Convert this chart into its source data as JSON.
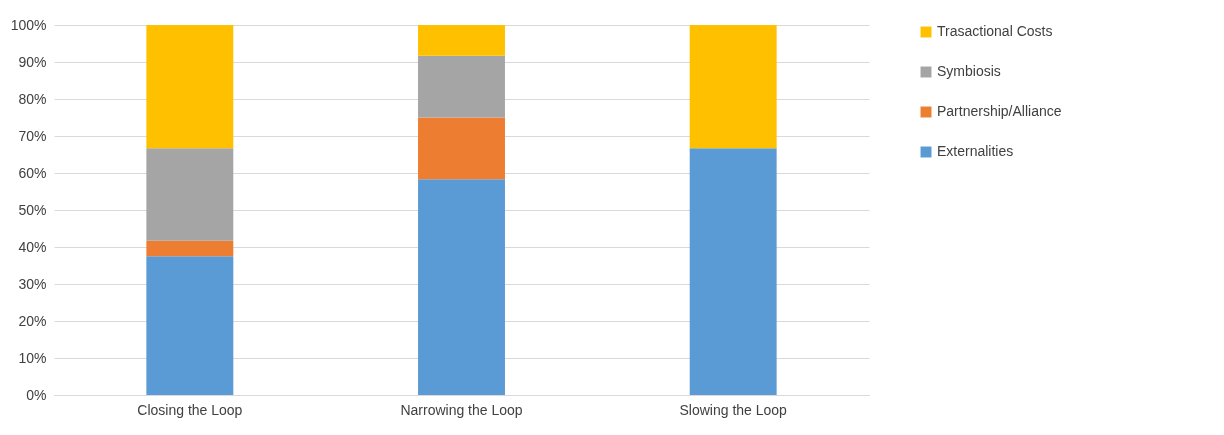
{
  "chart_data": {
    "type": "bar",
    "stacked": true,
    "categories": [
      "Closing the Loop",
      "Narrowing the Loop",
      "Slowing the Loop"
    ],
    "series": [
      {
        "name": "Externalities",
        "color": "#5b9bd5",
        "values": [
          37.5,
          58.3,
          66.7
        ]
      },
      {
        "name": "Partnership/Alliance",
        "color": "#ed7d31",
        "values": [
          4.2,
          16.7,
          0
        ]
      },
      {
        "name": "Symbiosis",
        "color": "#a5a5a5",
        "values": [
          25,
          16.7,
          0
        ]
      },
      {
        "name": "Trasactional Costs",
        "color": "#ffc000",
        "values": [
          33.3,
          8.3,
          33.3
        ]
      }
    ],
    "ylim": [
      0,
      100
    ],
    "yticks": [
      {
        "value": 0,
        "label": "0%"
      },
      {
        "value": 10,
        "label": "10%"
      },
      {
        "value": 20,
        "label": "20%"
      },
      {
        "value": 30,
        "label": "30%"
      },
      {
        "value": 40,
        "label": "40%"
      },
      {
        "value": 50,
        "label": "50%"
      },
      {
        "value": 60,
        "label": "60%"
      },
      {
        "value": 70,
        "label": "70%"
      },
      {
        "value": 80,
        "label": "80%"
      },
      {
        "value": 90,
        "label": "90%"
      },
      {
        "value": 100,
        "label": "100%"
      }
    ],
    "grid": "y",
    "legend": "right"
  }
}
